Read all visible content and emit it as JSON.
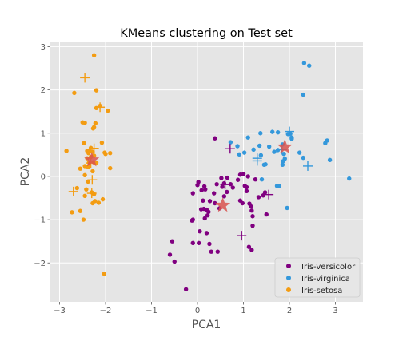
{
  "chart_data": {
    "type": "scatter",
    "title": "KMeans clustering on Test set",
    "xlabel": "PCA1",
    "ylabel": "PCA2",
    "xlim": [
      -3.2,
      3.6
    ],
    "ylim": [
      -2.9,
      3.1
    ],
    "xticks": [
      -3,
      -2,
      -1,
      0,
      1,
      2,
      3
    ],
    "yticks": [
      -2,
      -1,
      0,
      1,
      2,
      3
    ],
    "grid": true,
    "background": "#e5e5e5",
    "legend_position": "lower-right",
    "colors": {
      "Iris-versicolor": "#800080",
      "Iris-virginica": "#3498db",
      "Iris-setosa": "#f39c12",
      "centroid": "#d9534f"
    },
    "series": [
      {
        "name": "Iris-versicolor",
        "marker": "circle",
        "points": [
          [
            0.38,
            0.88
          ],
          [
            0.93,
            0.04
          ],
          [
            1.0,
            0.06
          ],
          [
            0.65,
            -0.03
          ],
          [
            0.72,
            -0.18
          ],
          [
            0.52,
            -0.04
          ],
          [
            0.42,
            -0.18
          ],
          [
            0.58,
            -0.16
          ],
          [
            0.54,
            -0.24
          ],
          [
            0.64,
            -0.36
          ],
          [
            0.77,
            -0.26
          ],
          [
            0.88,
            -0.08
          ],
          [
            0.36,
            -0.39
          ],
          [
            0.38,
            -0.62
          ],
          [
            0.27,
            -0.57
          ],
          [
            0.17,
            -0.3
          ],
          [
            0.15,
            -0.23
          ],
          [
            0.09,
            -0.32
          ],
          [
            0.02,
            -0.13
          ],
          [
            0.0,
            -0.2
          ],
          [
            -0.1,
            -0.39
          ],
          [
            -0.12,
            -1.02
          ],
          [
            -0.1,
            -1.0
          ],
          [
            0.14,
            -0.75
          ],
          [
            0.2,
            -0.77
          ],
          [
            0.24,
            -0.82
          ],
          [
            0.16,
            -0.97
          ],
          [
            0.08,
            -0.76
          ],
          [
            0.22,
            -0.9
          ],
          [
            0.05,
            -1.27
          ],
          [
            0.2,
            -1.31
          ],
          [
            -0.1,
            -1.54
          ],
          [
            0.03,
            -1.54
          ],
          [
            0.26,
            -1.56
          ],
          [
            0.3,
            -1.74
          ],
          [
            0.44,
            -1.74
          ],
          [
            -0.55,
            -1.5
          ],
          [
            -0.6,
            -1.81
          ],
          [
            -0.5,
            -1.97
          ],
          [
            -0.25,
            -2.61
          ],
          [
            0.93,
            -0.56
          ],
          [
            0.98,
            -0.62
          ],
          [
            1.03,
            -0.22
          ],
          [
            1.07,
            -0.25
          ],
          [
            1.07,
            -0.34
          ],
          [
            1.13,
            -0.63
          ],
          [
            1.16,
            -0.69
          ],
          [
            1.18,
            -0.79
          ],
          [
            1.2,
            -0.92
          ],
          [
            1.26,
            -0.07
          ],
          [
            1.33,
            -0.48
          ],
          [
            1.43,
            -0.44
          ],
          [
            1.47,
            -0.37
          ],
          [
            1.5,
            -0.88
          ],
          [
            1.2,
            -1.14
          ],
          [
            1.12,
            -1.63
          ],
          [
            1.18,
            -1.7
          ],
          [
            1.1,
            0.0
          ],
          [
            0.58,
            -0.46
          ],
          [
            0.48,
            -0.74
          ],
          [
            0.12,
            -0.56
          ]
        ]
      },
      {
        "name": "Iris-virginica",
        "marker": "circle",
        "points": [
          [
            2.32,
            2.62
          ],
          [
            2.43,
            2.56
          ],
          [
            2.3,
            1.89
          ],
          [
            2.78,
            0.77
          ],
          [
            2.82,
            0.83
          ],
          [
            2.88,
            0.38
          ],
          [
            3.3,
            -0.05
          ],
          [
            2.05,
            0.87
          ],
          [
            2.05,
            0.9
          ],
          [
            1.63,
            1.03
          ],
          [
            1.75,
            1.02
          ],
          [
            1.97,
            0.98
          ],
          [
            2.02,
            0.99
          ],
          [
            2.22,
            0.55
          ],
          [
            2.3,
            0.43
          ],
          [
            1.37,
            1.0
          ],
          [
            1.1,
            0.9
          ],
          [
            1.02,
            0.55
          ],
          [
            0.91,
            0.51
          ],
          [
            0.87,
            0.7
          ],
          [
            0.72,
            0.79
          ],
          [
            1.22,
            0.62
          ],
          [
            1.35,
            0.71
          ],
          [
            1.38,
            0.49
          ],
          [
            1.56,
            0.69
          ],
          [
            1.67,
            0.57
          ],
          [
            1.85,
            0.74
          ],
          [
            1.88,
            0.52
          ],
          [
            1.86,
            0.35
          ],
          [
            1.9,
            0.41
          ],
          [
            1.85,
            0.27
          ],
          [
            1.75,
            0.61
          ],
          [
            1.45,
            0.27
          ],
          [
            1.48,
            0.28
          ],
          [
            1.4,
            -0.07
          ],
          [
            1.73,
            -0.22
          ],
          [
            1.78,
            -0.22
          ],
          [
            1.95,
            -0.73
          ]
        ]
      },
      {
        "name": "Iris-setosa",
        "marker": "circle",
        "points": [
          [
            -2.25,
            2.8
          ],
          [
            -2.2,
            1.99
          ],
          [
            -2.68,
            1.93
          ],
          [
            -2.45,
            1.24
          ],
          [
            -2.5,
            1.25
          ],
          [
            -2.27,
            1.11
          ],
          [
            -2.25,
            1.14
          ],
          [
            -2.22,
            1.23
          ],
          [
            -2.2,
            1.58
          ],
          [
            -2.12,
            1.63
          ],
          [
            -1.95,
            1.52
          ],
          [
            -2.08,
            0.78
          ],
          [
            -2.02,
            0.55
          ],
          [
            -2.0,
            0.52
          ],
          [
            -1.9,
            0.54
          ],
          [
            -2.4,
            0.59
          ],
          [
            -2.37,
            0.54
          ],
          [
            -2.35,
            0.58
          ],
          [
            -2.32,
            0.66
          ],
          [
            -2.28,
            0.57
          ],
          [
            -2.47,
            0.77
          ],
          [
            -2.25,
            0.48
          ],
          [
            -2.32,
            0.45
          ],
          [
            -2.4,
            0.42
          ],
          [
            -2.36,
            0.32
          ],
          [
            -2.26,
            0.33
          ],
          [
            -2.38,
            0.22
          ],
          [
            -2.45,
            0.24
          ],
          [
            -2.2,
            0.32
          ],
          [
            -2.28,
            0.12
          ],
          [
            -2.55,
            0.18
          ],
          [
            -1.9,
            0.19
          ],
          [
            -2.85,
            0.59
          ],
          [
            -2.62,
            -0.27
          ],
          [
            -2.45,
            -0.45
          ],
          [
            -2.42,
            -0.3
          ],
          [
            -2.38,
            -0.12
          ],
          [
            -2.3,
            -0.37
          ],
          [
            -2.25,
            -0.41
          ],
          [
            -2.23,
            -0.57
          ],
          [
            -2.15,
            -0.61
          ],
          [
            -2.06,
            -0.53
          ],
          [
            -2.28,
            -0.62
          ],
          [
            -2.55,
            -0.8
          ],
          [
            -2.73,
            -0.83
          ],
          [
            -2.48,
            -1.0
          ],
          [
            -2.03,
            -2.25
          ],
          [
            -2.45,
            0.03
          ]
        ]
      }
    ],
    "cross_markers": [
      {
        "series": "Iris-setosa",
        "points": [
          [
            -2.45,
            2.28
          ],
          [
            -2.12,
            1.6
          ],
          [
            -2.25,
            0.65
          ],
          [
            -2.32,
            0.31
          ],
          [
            -2.29,
            -0.08
          ],
          [
            -2.3,
            -0.39
          ],
          [
            -2.7,
            -0.35
          ]
        ]
      },
      {
        "series": "Iris-versicolor",
        "points": [
          [
            0.71,
            0.64
          ],
          [
            0.6,
            -0.19
          ],
          [
            0.96,
            -1.37
          ],
          [
            1.55,
            -0.42
          ]
        ]
      },
      {
        "series": "Iris-virginica",
        "points": [
          [
            1.3,
            0.42
          ],
          [
            1.3,
            0.36
          ],
          [
            1.84,
            0.62
          ],
          [
            2.0,
            1.04
          ],
          [
            2.4,
            0.24
          ]
        ]
      }
    ],
    "centroids": [
      {
        "series": "Iris-setosa",
        "x": -2.3,
        "y": 0.38
      },
      {
        "series": "Iris-versicolor",
        "x": 0.55,
        "y": -0.67
      },
      {
        "series": "Iris-virginica",
        "x": 1.9,
        "y": 0.68
      }
    ]
  }
}
